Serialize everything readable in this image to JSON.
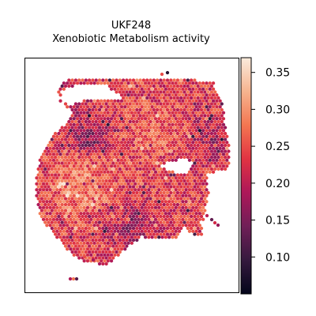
{
  "chart_data": {
    "type": "scatter",
    "title": "UKF248",
    "subtitle": "Xenobiotic Metabolism activity",
    "xlabel": "",
    "ylabel": "",
    "grid": false,
    "legend": "colorbar-right",
    "colorbar": {
      "min": 0.05,
      "max": 0.37,
      "ticks": [
        0.1,
        0.15,
        0.2,
        0.25,
        0.3,
        0.35
      ],
      "tick_labels": [
        "0.10",
        "0.15",
        "0.20",
        "0.25",
        "0.30",
        "0.35"
      ],
      "colormap": "rocket"
    },
    "stats": {
      "dominant_range": [
        0.18,
        0.3
      ],
      "highest_values_region": "left-center",
      "lowest_values_region": "upper-middle-left"
    }
  },
  "colors": {
    "background": "#ffffff",
    "frame": "#000000",
    "colormap": [
      "#03051a",
      "#35193e",
      "#701f57",
      "#ad1759",
      "#e13342",
      "#f37651",
      "#f6b48f",
      "#faebdd"
    ]
  }
}
